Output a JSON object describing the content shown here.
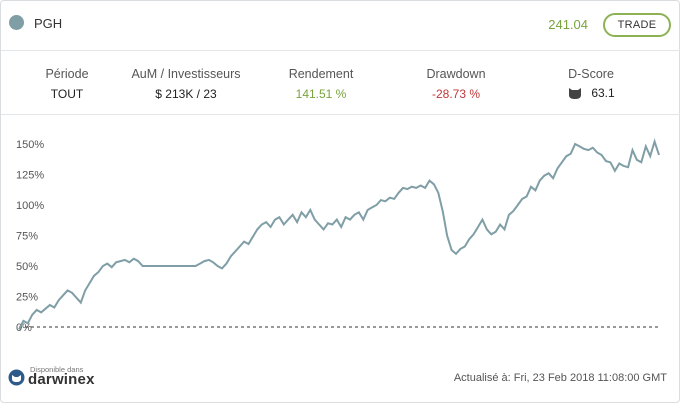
{
  "header": {
    "symbol": "PGH",
    "price": "241.04",
    "trade_label": "TRADE"
  },
  "stats": [
    {
      "label": "Période",
      "value": "TOUT"
    },
    {
      "label": "AuM / Investisseurs",
      "value": "$ 213K / 23"
    },
    {
      "label": "Rendement",
      "value": "141.51 %"
    },
    {
      "label": "Drawdown",
      "value": "-28.73 %"
    },
    {
      "label": "D-Score",
      "value": "63.1"
    }
  ],
  "colors": {
    "accent_green": "#79a33c",
    "negative_red": "#c0383a",
    "series": "#7f9ea6"
  },
  "chart_data": {
    "type": "line",
    "y_ticks": [
      "150%",
      "125%",
      "100%",
      "75%",
      "50%",
      "25%",
      "0%"
    ],
    "ylim": [
      0,
      150
    ],
    "baseline": 0,
    "series": [
      {
        "values": [
          -2,
          5,
          3,
          10,
          14,
          12,
          15,
          18,
          16,
          22,
          26,
          30,
          28,
          24,
          20,
          30,
          36,
          42,
          45,
          50,
          52,
          49,
          53,
          54,
          55,
          53,
          56,
          54,
          50,
          50,
          50,
          50,
          50,
          50,
          50,
          50,
          50,
          50,
          50,
          50,
          50,
          52,
          54,
          55,
          53,
          50,
          48,
          52,
          58,
          62,
          66,
          70,
          68,
          74,
          80,
          84,
          86,
          82,
          88,
          90,
          84,
          88,
          92,
          86,
          94,
          90,
          96,
          88,
          84,
          80,
          85,
          84,
          88,
          82,
          90,
          88,
          92,
          94,
          88,
          96,
          98,
          100,
          104,
          103,
          106,
          105,
          110,
          114,
          113,
          115,
          114,
          116,
          114,
          120,
          117,
          110,
          95,
          75,
          63,
          60,
          64,
          66,
          72,
          76,
          82,
          88,
          80,
          76,
          78,
          84,
          80,
          92,
          95,
          100,
          105,
          107,
          115,
          112,
          120,
          124,
          126,
          122,
          130,
          135,
          140,
          142,
          150,
          148,
          146,
          145,
          147,
          143,
          141,
          136,
          135,
          128,
          134,
          132,
          131,
          145,
          137,
          135,
          148,
          140,
          152,
          141
        ]
      }
    ]
  },
  "footer": {
    "available_text": "Disponible dans",
    "brand": "darwinex",
    "updated": "Actualisé à: Fri, 23 Feb 2018 11:08:00 GMT"
  }
}
